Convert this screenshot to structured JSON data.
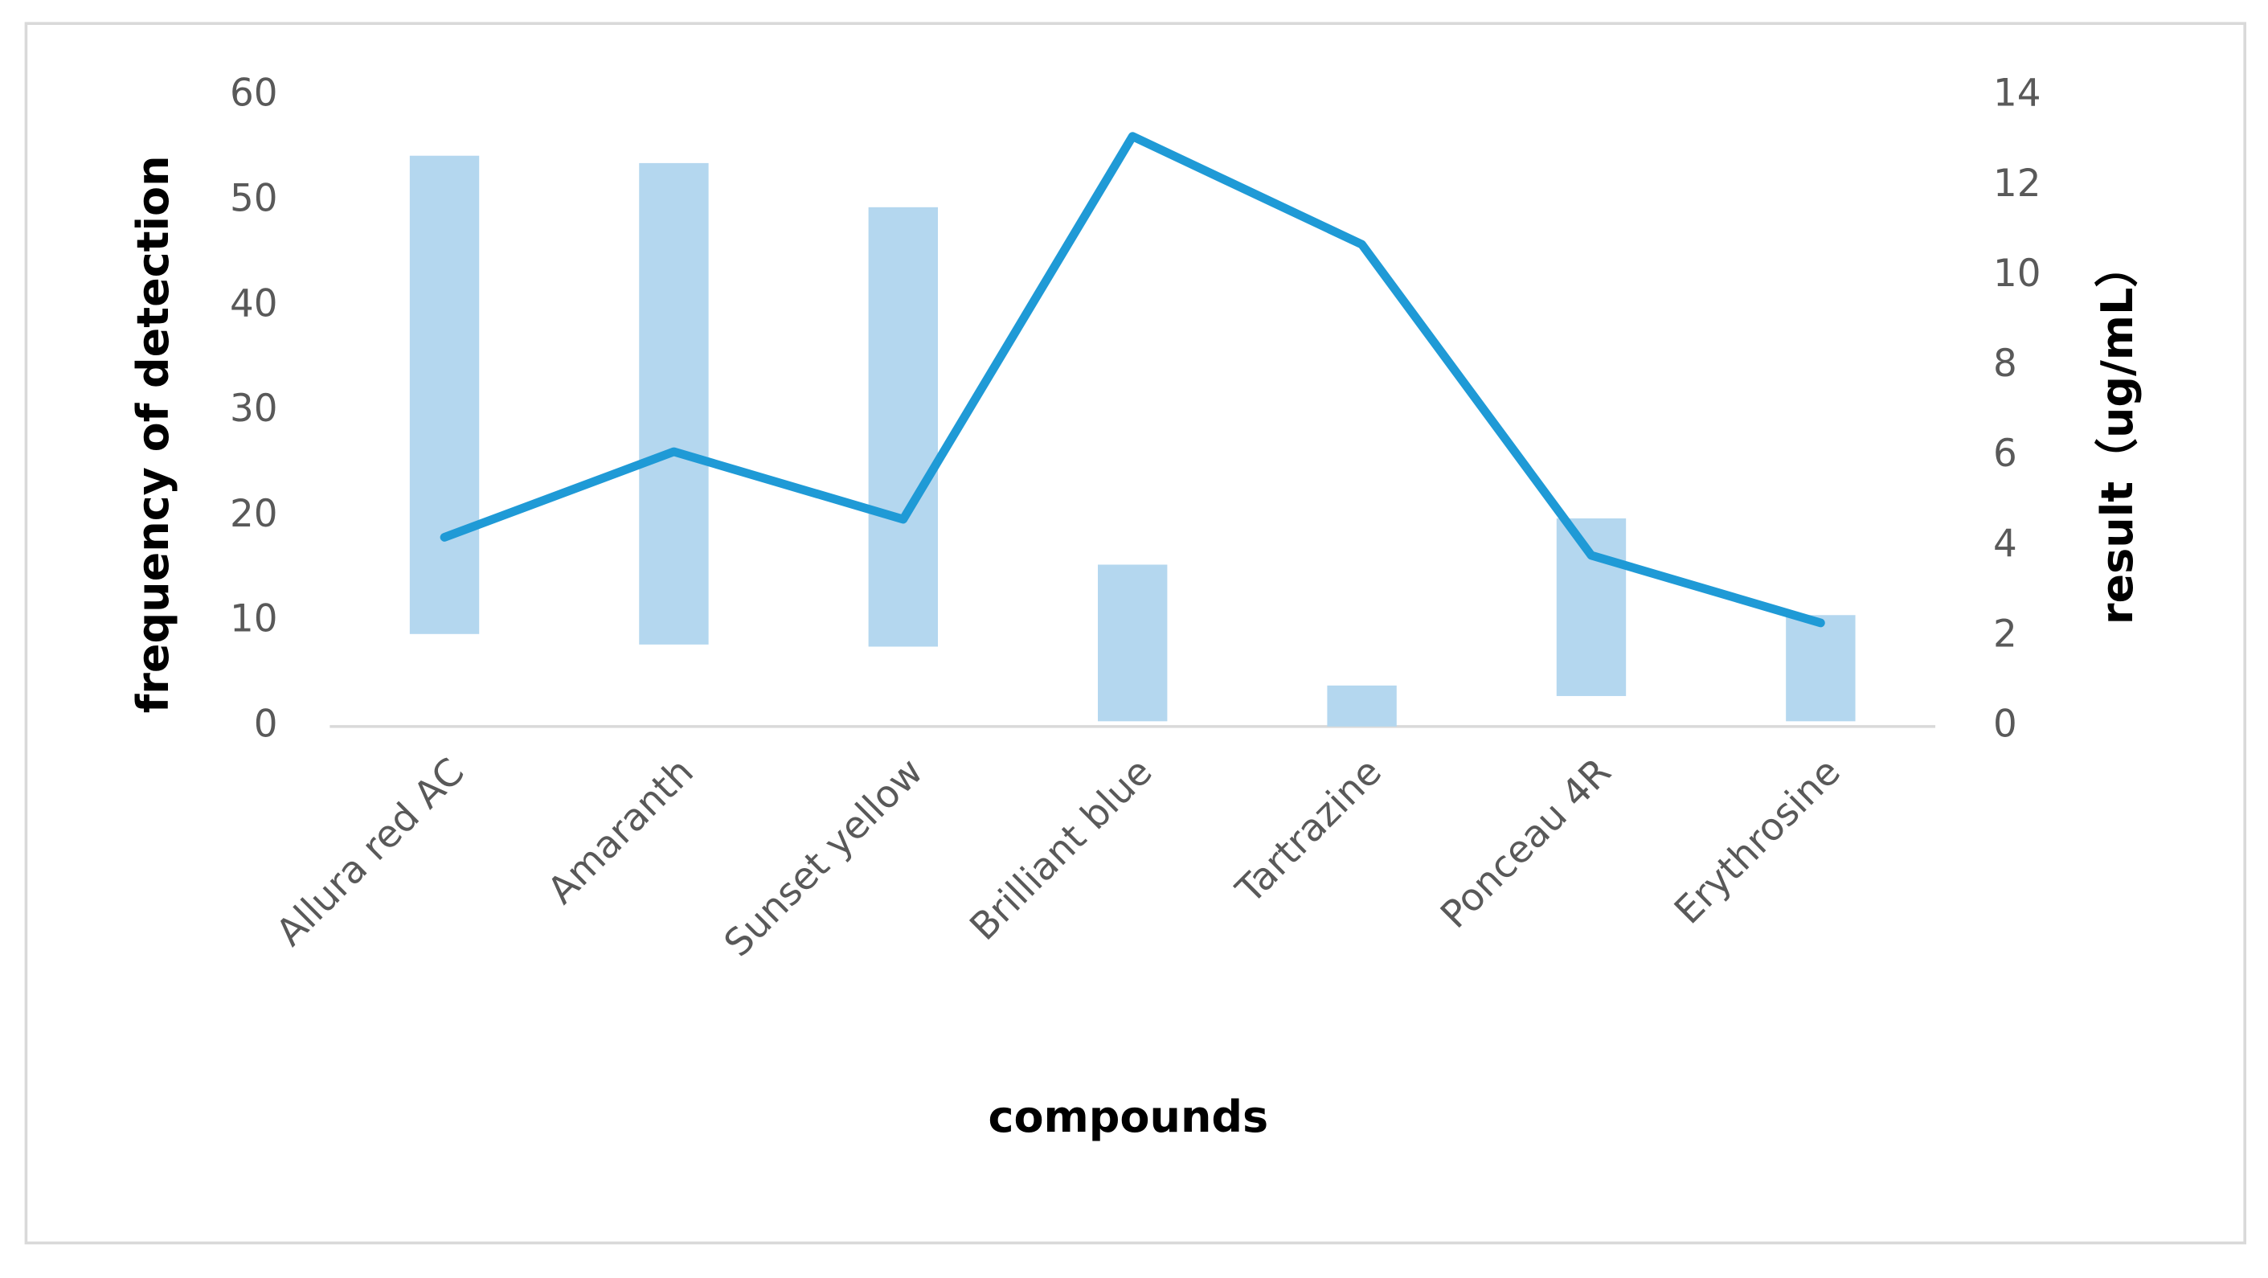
{
  "chart_data": {
    "type": "bar",
    "x_label": "compounds",
    "y_label": "frequency of detection",
    "y2_label": "result（ug/mL）",
    "categories": [
      "Allura red AC",
      "Amaranth",
      "Sunset yellow",
      "Brilliant blue",
      "Tartrazine",
      "Ponceau 4R",
      "Erythrosine"
    ],
    "bars": {
      "color": "#b4d7ef",
      "low": [
        8.8,
        7.8,
        7.6,
        0.5,
        0,
        2.9,
        0.5
      ],
      "high": [
        54.3,
        53.6,
        49.4,
        15.4,
        3.9,
        19.8,
        10.6
      ]
    },
    "line": {
      "axis": "y2",
      "color": "#1f9ad6",
      "values": [
        4.2,
        6.1,
        4.6,
        13.1,
        10.7,
        3.8,
        2.3
      ]
    },
    "ylim": [
      0,
      60
    ],
    "yticks": [
      0,
      10,
      20,
      30,
      40,
      50,
      60
    ],
    "y2lim": [
      0,
      14
    ],
    "y2ticks": [
      0,
      2,
      4,
      6,
      8,
      10,
      12,
      14
    ],
    "grid": false
  }
}
